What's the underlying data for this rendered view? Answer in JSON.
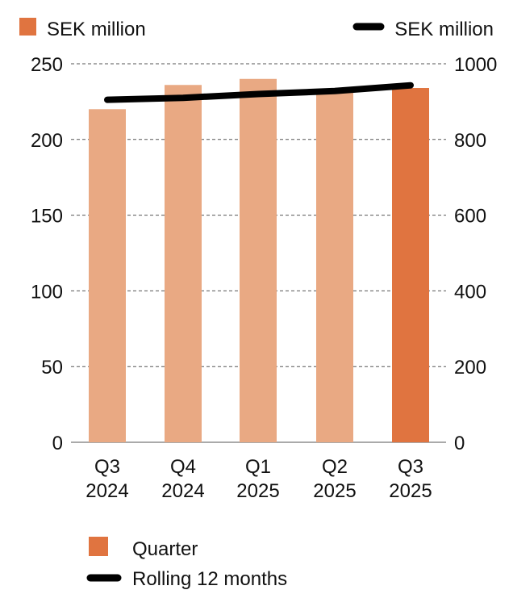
{
  "chart_data": {
    "type": "bar",
    "categories": [
      [
        "Q3",
        "2024"
      ],
      [
        "Q4",
        "2024"
      ],
      [
        "Q1",
        "2025"
      ],
      [
        "Q2",
        "2025"
      ],
      [
        "Q3",
        "2025"
      ]
    ],
    "left_axis": {
      "label": "SEK million",
      "ticks": [
        0,
        50,
        100,
        150,
        200,
        250
      ],
      "range": [
        0,
        250
      ]
    },
    "right_axis": {
      "label": "SEK million",
      "ticks": [
        0,
        200,
        400,
        600,
        800,
        1000
      ],
      "range": [
        0,
        1000
      ]
    },
    "series": [
      {
        "name": "Quarter",
        "type": "bar",
        "axis": "left",
        "values": [
          220,
          236,
          240,
          232,
          234
        ],
        "colors": [
          "#e9a983",
          "#e9a983",
          "#e9a983",
          "#e9a983",
          "#e07440"
        ]
      },
      {
        "name": "Rolling 12 months",
        "type": "line",
        "axis": "right",
        "values": [
          905,
          910,
          920,
          928,
          943
        ],
        "color": "#000000"
      }
    ],
    "legend": [
      {
        "label": "Quarter",
        "kind": "bar",
        "color": "#e07440"
      },
      {
        "label": "Rolling 12 months",
        "kind": "line",
        "color": "#000000"
      }
    ],
    "grid": "horizontal-dashed"
  }
}
